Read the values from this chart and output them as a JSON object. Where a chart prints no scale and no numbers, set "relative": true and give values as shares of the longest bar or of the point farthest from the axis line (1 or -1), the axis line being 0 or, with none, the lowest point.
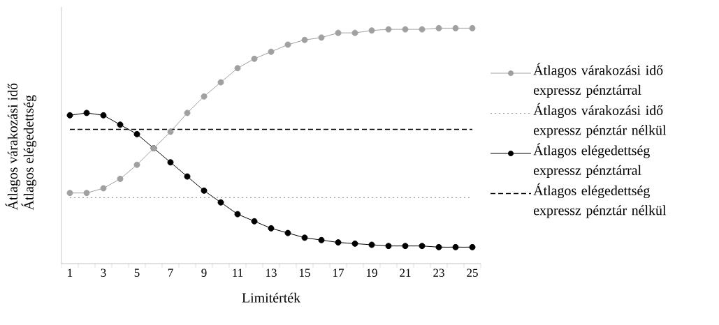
{
  "chart_data": {
    "type": "line",
    "relative": true,
    "xlabel": "Limitérték",
    "ylabel": "Átlagos várakozási idő Átlagos elégedettség",
    "x": [
      1,
      2,
      3,
      4,
      5,
      6,
      7,
      8,
      9,
      10,
      11,
      12,
      13,
      14,
      15,
      16,
      17,
      18,
      19,
      20,
      21,
      22,
      23,
      24,
      25
    ],
    "xlim": [
      0.5,
      25.5
    ],
    "xticks": [
      1,
      3,
      5,
      7,
      9,
      11,
      13,
      15,
      17,
      19,
      21,
      23,
      25,
      {
        "value": 0.5,
        "label": null
      },
      {
        "value": 1.5,
        "label": null
      },
      {
        "value": 2.5,
        "label": null
      },
      {
        "value": 3.5,
        "label": null
      },
      {
        "value": 4.5,
        "label": null
      },
      {
        "value": 5.5,
        "label": null
      },
      {
        "value": 6.5,
        "label": null
      },
      {
        "value": 7.5,
        "label": null
      },
      {
        "value": 8.5,
        "label": null
      },
      {
        "value": 9.5,
        "label": null
      },
      {
        "value": 10.5,
        "label": null
      },
      {
        "value": 11.5,
        "label": null
      },
      {
        "value": 12.5,
        "label": null
      },
      {
        "value": 13.5,
        "label": null
      },
      {
        "value": 14.5,
        "label": null
      },
      {
        "value": 15.5,
        "label": null
      },
      {
        "value": 16.5,
        "label": null
      },
      {
        "value": 17.5,
        "label": null
      },
      {
        "value": 18.5,
        "label": null
      },
      {
        "value": 19.5,
        "label": null
      },
      {
        "value": 20.5,
        "label": null
      },
      {
        "value": 21.5,
        "label": null
      },
      {
        "value": 22.5,
        "label": null
      },
      {
        "value": 23.5,
        "label": null
      },
      {
        "value": 24.5,
        "label": null
      },
      {
        "value": 25.5,
        "label": null
      }
    ],
    "marker": "circle",
    "legend": "right",
    "grid": false,
    "series": [
      {
        "name": "Átlagos várakozási idő expressz pénztárral",
        "color": "#a0a0a0",
        "values": [
          0.3,
          0.3,
          0.32,
          0.36,
          0.42,
          0.49,
          0.56,
          0.64,
          0.71,
          0.77,
          0.83,
          0.87,
          0.9,
          0.93,
          0.95,
          0.96,
          0.98,
          0.98,
          0.99,
          0.995,
          0.995,
          0.995,
          1,
          1,
          1
        ]
      },
      {
        "name": "Átlagos elégedettség expressz pénztárral",
        "color": "#000000",
        "values": [
          0.63,
          0.64,
          0.63,
          0.59,
          0.55,
          0.49,
          0.43,
          0.37,
          0.31,
          0.26,
          0.21,
          0.18,
          0.15,
          0.13,
          0.11,
          0.1,
          0.09,
          0.085,
          0.08,
          0.075,
          0.075,
          0.075,
          0.07,
          0.07,
          0.07
        ]
      }
    ],
    "ref_lines": [
      {
        "axis": "y",
        "value": 0.28,
        "label": "Átlagos várakozási idő expressz pénztár nélkül",
        "color": "#a0a0a0",
        "line_style": "dotted"
      },
      {
        "axis": "y",
        "value": 0.57,
        "label": "Átlagos elégedettség expressz pénztár nélkül",
        "color": "#000000",
        "line_style": "dashed"
      }
    ]
  }
}
